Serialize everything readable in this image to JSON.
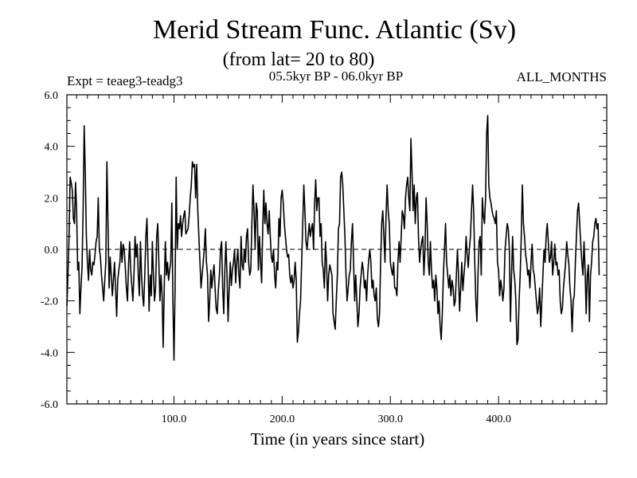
{
  "chart_data": {
    "type": "line",
    "title": "Merid Stream Func. Atlantic (Sv)",
    "subtitle": "(from lat= 20 to 80)",
    "experiment_label": "Expt = teaeg3-teadg3",
    "period_label": "05.5kyr BP - 06.0kyr BP",
    "season_label": "ALL_MONTHS",
    "xlabel": "Time (in years since start)",
    "ylabel": "",
    "xlim": [
      1,
      500
    ],
    "ylim": [
      -6,
      6
    ],
    "xticks": [
      100,
      200,
      300,
      400
    ],
    "xtick_labels": [
      "100.0",
      "200.0",
      "300.0",
      "400.0"
    ],
    "yticks": [
      -6,
      -4,
      -2,
      0,
      2,
      4,
      6
    ],
    "ytick_labels": [
      "-6.0",
      "-4.0",
      "-2.0",
      "0.0",
      "2.0",
      "4.0",
      "6.0"
    ],
    "zero_line": "dashed",
    "series": [
      {
        "name": "teaeg3-teadg3",
        "x": "years 1 to 500, step 1",
        "values": [
          -2.2,
          -1.0,
          0.5,
          2.8,
          2.6,
          2.3,
          1.2,
          1.0,
          2.6,
          1.5,
          -0.8,
          -0.5,
          -2.5,
          -1.5,
          -0.7,
          1.5,
          4.8,
          3.0,
          0.5,
          -0.5,
          -1.2,
          0.0,
          -0.8,
          -1.0,
          -0.5,
          -0.6,
          -0.2,
          0.3,
          0.5,
          2.0,
          0.0,
          -0.3,
          -1.0,
          -1.5,
          -2.0,
          -1.2,
          -0.5,
          3.4,
          1.0,
          -1.5,
          -0.3,
          -1.0,
          -1.8,
          -1.2,
          -0.5,
          -1.5,
          -2.6,
          -1.2,
          -0.8,
          -0.5,
          0.3,
          -0.5,
          0.2,
          0.0,
          -0.7,
          -1.5,
          -2.0,
          -0.6,
          0.3,
          -0.8,
          -1.4,
          -2.0,
          -1.0,
          0.5,
          -0.3,
          0.2,
          -1.0,
          -1.8,
          0.3,
          -1.0,
          -1.8,
          -2.2,
          -1.0,
          0.5,
          1.2,
          -0.5,
          -2.4,
          -1.0,
          -1.8,
          0.3,
          -1.0,
          -2.0,
          -1.5,
          0.5,
          1.0,
          -0.5,
          -2.0,
          -1.0,
          -1.8,
          -3.8,
          -1.5,
          0.3,
          -1.0,
          -0.5,
          -1.2,
          -0.8,
          -0.5,
          1.8,
          -2.0,
          -4.3,
          -1.5,
          2.8,
          0.0,
          1.0,
          0.8,
          1.3,
          0.5,
          1.0,
          1.3,
          1.5,
          0.6,
          0.7,
          0.8,
          1.3,
          2.0,
          2.5,
          3.4,
          3.2,
          3.3,
          2.0,
          3.3,
          1.5,
          0.5,
          -0.5,
          -1.5,
          -1.0,
          -0.5,
          0.0,
          0.8,
          -0.5,
          -1.0,
          -2.8,
          -2.0,
          -0.8,
          -1.5,
          -1.0,
          -0.6,
          -1.5,
          -2.3,
          -2.5,
          -1.6,
          -1.0,
          0.0,
          0.3,
          -1.5,
          -2.5,
          -0.8,
          0.3,
          -1.0,
          -2.8,
          -1.5,
          -0.5,
          -1.4,
          -0.8,
          -0.5,
          0.0,
          -1.3,
          -0.5,
          0.0,
          -1.0,
          -1.5,
          0.5,
          -0.6,
          -0.8,
          0.0,
          -0.5,
          0.5,
          0.8,
          -0.5,
          -1.0,
          -0.8,
          1.0,
          2.5,
          1.5,
          0.0,
          1.8,
          1.5,
          -0.8,
          0.5,
          -0.5,
          -1.3,
          0.8,
          2.3,
          1.0,
          1.8,
          1.0,
          0.6,
          1.5,
          0.5,
          -0.3,
          -0.5,
          0.0,
          -1.0,
          -1.5,
          -0.5,
          -0.8,
          1.2,
          0.5,
          2.0,
          2.3,
          1.8,
          1.0,
          0.5,
          0.0,
          -0.3,
          -0.2,
          -1.0,
          -1.3,
          -1.0,
          -1.5,
          -1.2,
          -0.5,
          -1.2,
          -3.6,
          -3.2,
          -2.5,
          -2.0,
          -0.5,
          1.0,
          2.5,
          1.5,
          0.3,
          0.0,
          0.5,
          1.0,
          0.5,
          0.8,
          1.0,
          0.0,
          1.8,
          2.7,
          1.5,
          2.0,
          2.0,
          0.5,
          1.0,
          -0.5,
          -0.8,
          -1.5,
          0.3,
          -0.5,
          -2.0,
          -1.0,
          -0.6,
          -0.8,
          -1.0,
          -2.5,
          -2.8,
          -3.1,
          -2.0,
          -1.0,
          0.8,
          1.0,
          2.8,
          3.0,
          2.5,
          1.5,
          0.5,
          -1.0,
          -2.0,
          -1.5,
          -1.0,
          -0.8,
          0.3,
          1.0,
          -0.5,
          -2.0,
          -1.0,
          -2.0,
          -3.0,
          -2.5,
          -1.5,
          -1.0,
          -0.5,
          -0.8,
          -1.5,
          -1.2,
          -2.0,
          -1.0,
          -0.4,
          0.0,
          -0.5,
          -1.5,
          -1.2,
          -1.8,
          -2.0,
          -1.5,
          -2.7,
          -3.0,
          -2.5,
          -0.5,
          1.0,
          1.5,
          0.5,
          -0.5,
          1.3,
          2.5,
          1.5,
          1.0,
          -0.5,
          -0.8,
          -1.0,
          -0.5,
          -1.5,
          -1.5,
          -1.8,
          -0.5,
          0.3,
          -0.5,
          0.5,
          1.5,
          1.3,
          0.8,
          2.0,
          2.5,
          2.8,
          2.0,
          1.5,
          4.3,
          3.0,
          1.5,
          2.5,
          1.0,
          2.0,
          2.2,
          0.5,
          -0.5,
          0.0,
          0.3,
          0.5,
          -1.0,
          0.0,
          2.0,
          1.0,
          -0.5,
          -1.0,
          0.3,
          -0.8,
          -1.5,
          -1.2,
          -2.0,
          -1.0,
          -1.5,
          -2.5,
          -2.0,
          -3.0,
          -3.5,
          -2.5,
          -1.0,
          0.0,
          1.0,
          -0.5,
          -1.0,
          -1.5,
          -1.0,
          -1.8,
          -1.2,
          -1.5,
          -2.2,
          -2.0,
          -1.0,
          0.0,
          -1.0,
          -2.4,
          -1.5,
          -0.5,
          -1.6,
          -1.0,
          -0.5,
          0.5,
          -0.2,
          -0.7,
          0.0,
          0.5,
          1.5,
          2.5,
          1.5,
          -0.5,
          -2.0,
          -2.8,
          -1.0,
          0.3,
          0.5,
          -1.0,
          2.0,
          1.3,
          1.0,
          2.0,
          4.5,
          5.2,
          2.5,
          2.0,
          1.8,
          1.5,
          1.3,
          1.2,
          1.0,
          1.5,
          -0.5,
          -0.8,
          -1.8,
          -1.2,
          -1.5,
          -2.0,
          -1.5,
          0.0,
          0.5,
          1.0,
          0.8,
          0.0,
          -2.8,
          -1.0,
          0.5,
          -0.8,
          -1.2,
          -2.0,
          -3.7,
          -3.5,
          -2.0,
          -1.0,
          0.5,
          2.5,
          1.0,
          0.5,
          -0.2,
          -0.5,
          -1.0,
          -0.8,
          -1.5,
          -0.5,
          0.2,
          -0.8,
          -1.0,
          -1.5,
          -2.0,
          -2.5,
          -2.2,
          -1.5,
          -3.0,
          -2.0,
          -1.0,
          0.0,
          -0.5,
          0.5,
          1.0,
          0.3,
          -0.5,
          -0.3,
          0.3,
          -1.0,
          -0.5,
          0.2,
          -0.6,
          -0.5,
          -1.0,
          -0.8,
          -2.0,
          -2.5,
          -2.3,
          -1.5,
          -1.0,
          -0.5,
          0.3,
          -0.2,
          -0.6,
          -1.5,
          -2.0,
          -3.2,
          -2.0,
          -1.8,
          -0.5,
          0.5,
          1.5,
          1.8,
          1.0,
          0.2,
          -0.5,
          -1.0,
          0.3,
          -0.8,
          -2.5,
          -1.0,
          -0.6,
          -2.8,
          -1.0,
          -0.5,
          0.3,
          0.5,
          1.0,
          1.2,
          0.8,
          1.0,
          -1.0
        ]
      }
    ],
    "style": {
      "line_color": "#000000",
      "background": "#ffffff"
    }
  }
}
